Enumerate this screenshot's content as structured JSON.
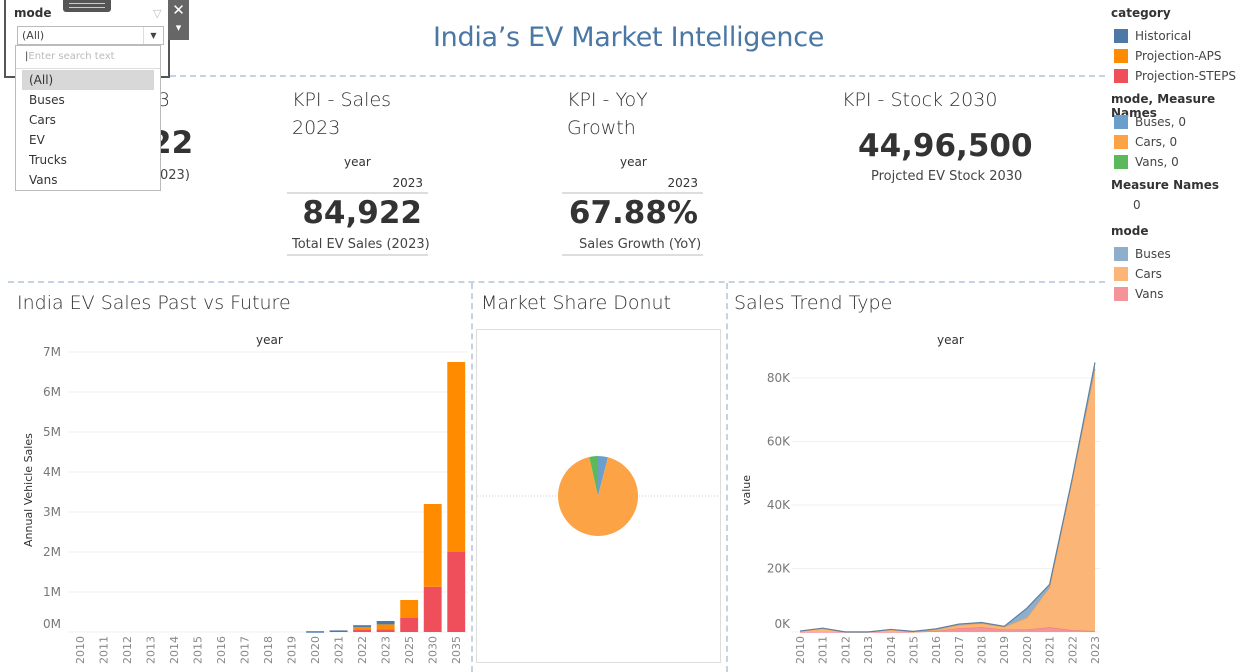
{
  "dashboard": {
    "title": "India’s EV Market Intelligence"
  },
  "filter": {
    "label": "mode",
    "selected": "(All)",
    "search_placeholder": "Enter search text",
    "options": [
      "(All)",
      "Buses",
      "Cars",
      "EV",
      "Trucks",
      "Vans"
    ],
    "close_icon": "✕",
    "menu_icon": "▾",
    "funnel_icon": "▽"
  },
  "kpi_hidden": {
    "title_fragment": "3",
    "value_fragment": "22",
    "sub_fragment": "023)"
  },
  "kpi_sales": {
    "title_line1": "KPI - Sales",
    "title_line2": "2023",
    "header": "year",
    "year": "2023",
    "value": "84,922",
    "label": "Total EV Sales (2023)"
  },
  "kpi_yoy": {
    "title_line1": "KPI - YoY",
    "title_line2": "Growth",
    "header": "year",
    "year": "2023",
    "value": "67.88%",
    "label": "Sales Growth (YoY)"
  },
  "kpi_stock": {
    "title": "KPI - Stock 2030",
    "value": "44,96,500",
    "label": "Projcted EV Stock 2030"
  },
  "legend": {
    "category": {
      "title": "category",
      "items": [
        {
          "label": "Historical",
          "color": "#4e79a7"
        },
        {
          "label": "Projection-APS",
          "color": "#ff8c00"
        },
        {
          "label": "Projection-STEPS",
          "color": "#ef4f5a"
        }
      ]
    },
    "mode_measure": {
      "title": "mode, Measure Names",
      "items": [
        {
          "label": "Buses, 0",
          "color": "#6a9fcb"
        },
        {
          "label": "Cars, 0",
          "color": "#fca346"
        },
        {
          "label": "Vans, 0",
          "color": "#5bb85b"
        }
      ]
    },
    "measure_names": {
      "title": "Measure Names",
      "value": "0"
    },
    "mode": {
      "title": "mode",
      "items": [
        {
          "label": "Buses",
          "color": "#8eaecb"
        },
        {
          "label": "Cars",
          "color": "#fbb677"
        },
        {
          "label": "Vans",
          "color": "#f4949a"
        }
      ]
    }
  },
  "sheets": {
    "bar_title": "India EV Sales Past vs Future",
    "pie_title": "Market Share Donut",
    "area_title": "Sales Trend Type"
  },
  "chart_data": [
    {
      "type": "bar",
      "title": "India EV Sales Past vs Future",
      "header": "year",
      "xlabel": "",
      "ylabel": "Annual Vehicle Sales",
      "ylim": [
        0,
        7000000
      ],
      "yticks": [
        "0M",
        "1M",
        "2M",
        "3M",
        "4M",
        "5M",
        "6M",
        "7M"
      ],
      "stacked": true,
      "categories": [
        "2010",
        "2011",
        "2012",
        "2013",
        "2014",
        "2015",
        "2016",
        "2017",
        "2018",
        "2019",
        "2020",
        "2021",
        "2022",
        "2023",
        "2025",
        "2030",
        "2035"
      ],
      "series": [
        {
          "name": "Projection-STEPS",
          "color": "#ef4f5a",
          "values": [
            0,
            0,
            0,
            0,
            0,
            0,
            0,
            0,
            0,
            0,
            0,
            0,
            50000,
            70000,
            350000,
            1130000,
            2000000
          ]
        },
        {
          "name": "Projection-APS",
          "color": "#ff8c00",
          "values": [
            0,
            0,
            0,
            0,
            0,
            0,
            0,
            0,
            0,
            0,
            0,
            0,
            70000,
            120000,
            450000,
            2070000,
            4750000
          ]
        },
        {
          "name": "Historical",
          "color": "#4e79a7",
          "values": [
            0,
            0,
            0,
            0,
            0,
            0,
            0,
            0,
            0,
            0,
            20000,
            40000,
            50000,
            85000,
            0,
            0,
            0
          ]
        }
      ]
    },
    {
      "type": "pie",
      "title": "Market Share Donut",
      "slices": [
        {
          "label": "Buses, 0",
          "value": 4,
          "color": "#6a9fcb"
        },
        {
          "label": "Cars, 0",
          "value": 92.5,
          "color": "#fca346"
        },
        {
          "label": "Vans, 0",
          "value": 3.5,
          "color": "#5bb85b"
        }
      ]
    },
    {
      "type": "area",
      "title": "Sales Trend Type",
      "header": "year",
      "xlabel": "",
      "ylabel": "value",
      "ylim": [
        0,
        88000
      ],
      "yticks": [
        "0K",
        "20K",
        "40K",
        "60K",
        "80K"
      ],
      "stacked": true,
      "categories": [
        "2010",
        "2011",
        "2012",
        "2013",
        "2014",
        "2015",
        "2016",
        "2017",
        "2018",
        "2019",
        "2020",
        "2021",
        "2022",
        "2023"
      ],
      "series": [
        {
          "name": "Vans",
          "color": "#f4949a",
          "values": [
            0,
            0,
            0,
            0,
            0,
            0,
            300,
            1200,
            1500,
            800,
            800,
            1500,
            600,
            300
          ]
        },
        {
          "name": "Cars",
          "color": "#fbb677",
          "values": [
            300,
            1200,
            0,
            0,
            800,
            0,
            400,
            1000,
            1200,
            800,
            3700,
            12500,
            47400,
            82500
          ]
        },
        {
          "name": "Buses",
          "color": "#8eaecb",
          "values": [
            0,
            0,
            0,
            0,
            0,
            200,
            300,
            300,
            300,
            200,
            3000,
            1000,
            500,
            2100
          ]
        }
      ]
    }
  ]
}
